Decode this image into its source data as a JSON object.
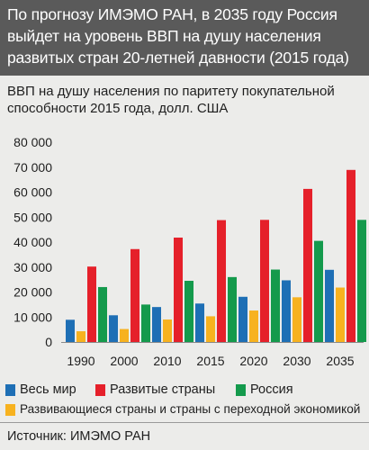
{
  "header": {
    "title": "По прогнозу ИМЭМО РАН, в 2035 году Россия выйдет на уровень ВВП на душу населения развитых стран 20-летней давности (2015 года)"
  },
  "subtitle": "ВВП на душу населения по паритету покупательной способности 2015 года, долл. США",
  "source": "Источник: ИМЭМО РАН",
  "colors": {
    "world": "#1e6fb5",
    "developed": "#e5202a",
    "russia": "#149a4c",
    "developing": "#f7b21f",
    "header_bg": "#5a5a5a",
    "background": "#ececea"
  },
  "chart_data": {
    "type": "bar",
    "categories": [
      "1990",
      "2000",
      "2010",
      "2015",
      "2020",
      "2030",
      "2035"
    ],
    "ylim": [
      0,
      80000
    ],
    "yticks": [
      0,
      10000,
      20000,
      30000,
      40000,
      50000,
      60000,
      70000,
      80000
    ],
    "ytick_labels": [
      "0",
      "10 000",
      "20 000",
      "30 000",
      "40 000",
      "50 000",
      "60 000",
      "70 000",
      "80 000"
    ],
    "grid": false,
    "legend_position": "bottom",
    "series": [
      {
        "name": "Весь мир",
        "color": "#1e6fb5",
        "values": [
          8900,
          10700,
          14000,
          15400,
          18100,
          24700,
          28900
        ]
      },
      {
        "name": "Развивающиеся страны и страны с переходной экономикой",
        "color": "#f7b21f",
        "values": [
          4300,
          5200,
          9000,
          10300,
          12600,
          17900,
          21800
        ]
      },
      {
        "name": "Развитые страны",
        "color": "#e5202a",
        "values": [
          30200,
          37200,
          41800,
          48800,
          48900,
          61300,
          68900
        ]
      },
      {
        "name": "Россия",
        "color": "#149a4c",
        "values": [
          22000,
          15000,
          24500,
          26000,
          29000,
          40500,
          48900
        ]
      }
    ]
  },
  "legend": [
    {
      "label": "Весь мир",
      "color": "#1e6fb5"
    },
    {
      "label": "Развитые страны",
      "color": "#e5202a"
    },
    {
      "label": "Россия",
      "color": "#149a4c"
    },
    {
      "label": "Развивающиеся страны и страны с переходной экономикой",
      "color": "#f7b21f"
    }
  ]
}
